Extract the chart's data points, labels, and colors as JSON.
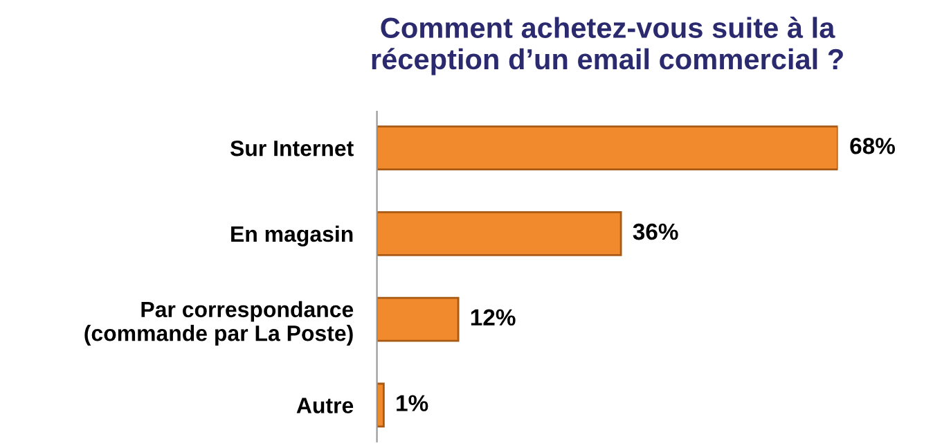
{
  "chart_data": {
    "type": "bar",
    "orientation": "horizontal",
    "title": "Comment achetez-vous suite à la\nréception d’un email commercial ?",
    "categories": [
      "Sur Internet",
      "En magasin",
      "Par correspondance\n(commande par La Poste)",
      "Autre"
    ],
    "values": [
      68,
      36,
      12,
      1
    ],
    "color": "#f08a2c",
    "data_labels": true,
    "value_labels": [
      "68%",
      "36%",
      "12%",
      "1%"
    ],
    "grid": false,
    "legend": false
  }
}
